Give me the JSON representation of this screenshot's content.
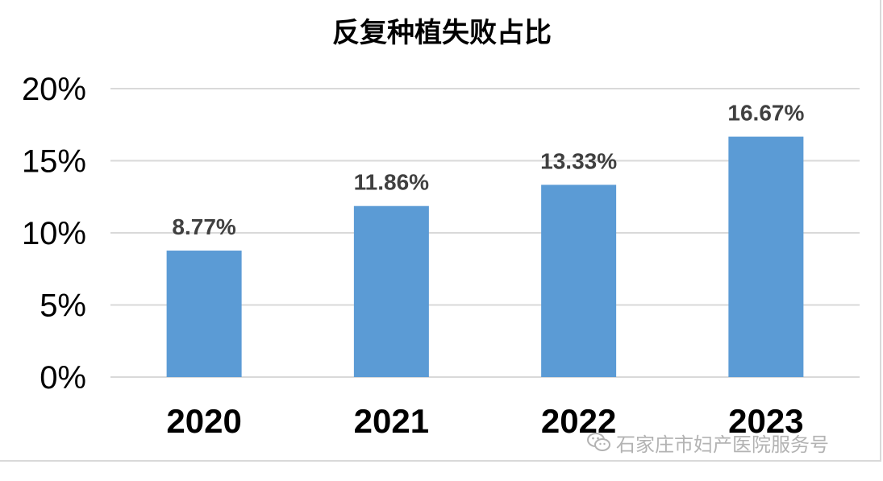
{
  "chart_data": {
    "type": "bar",
    "title": "反复种植失败占比",
    "categories": [
      "2020",
      "2021",
      "2022",
      "2023"
    ],
    "series": [
      {
        "values": [
          8.77,
          11.86,
          13.33,
          16.67
        ]
      }
    ],
    "data_labels": [
      "8.77%",
      "11.86%",
      "13.33%",
      "16.67%"
    ],
    "yticks": [
      0,
      5,
      10,
      15,
      20
    ],
    "ytick_labels": [
      "0%",
      "5%",
      "10%",
      "15%",
      "20%"
    ],
    "ylim": [
      0,
      20
    ],
    "xlabel": "",
    "ylabel": "",
    "grid": true,
    "legend": false,
    "bar_color": "#5b9bd5",
    "grid_color": "#d9d9d9",
    "label_color": "#404040"
  },
  "watermark": {
    "icon": "wechat-icon",
    "text": "石家庄市妇产医院服务号"
  }
}
